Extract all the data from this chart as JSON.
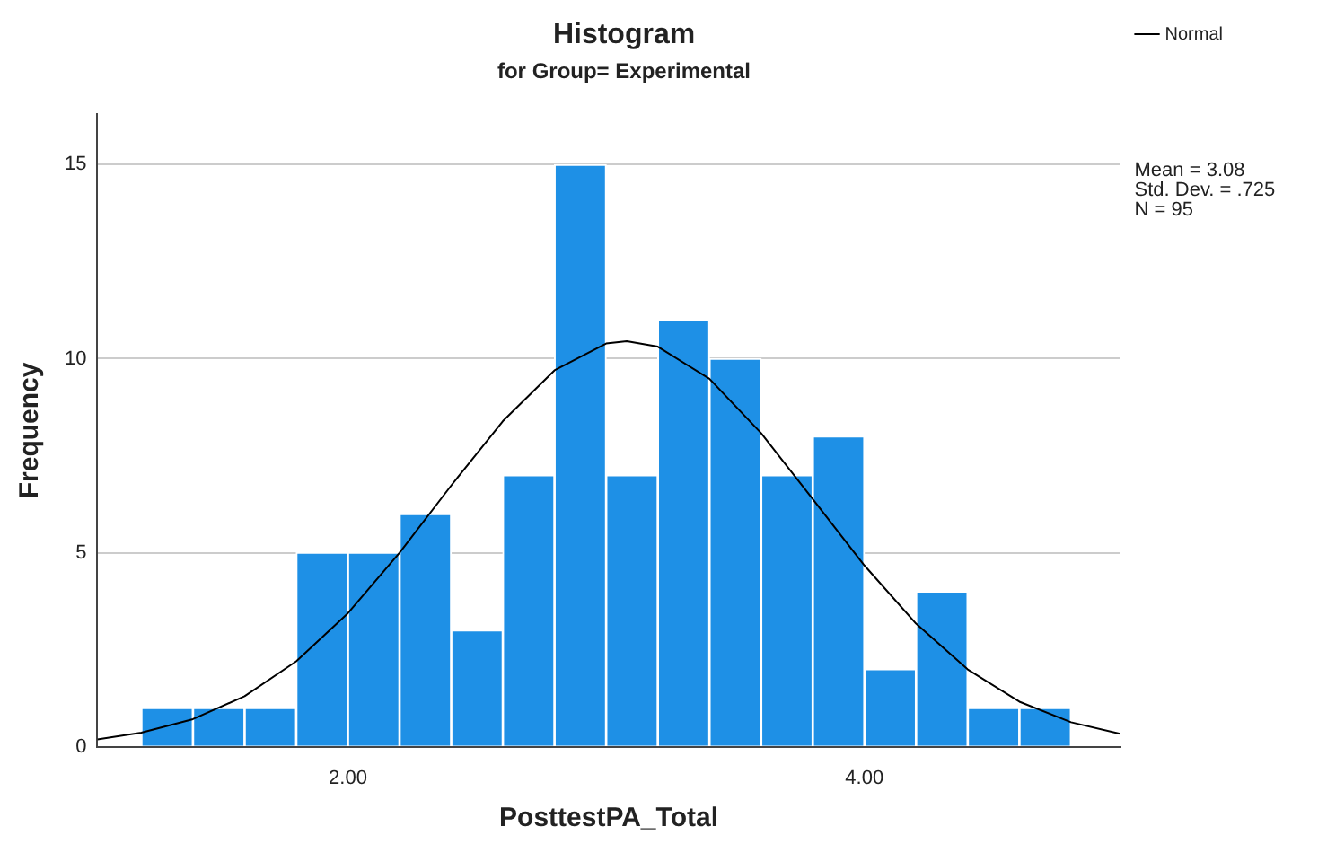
{
  "chart_data": {
    "type": "histogram",
    "title": "Histogram",
    "subtitle": "for Group= Experimental",
    "xlabel": "PosttestPA_Total",
    "ylabel": "Frequency",
    "bins": [
      1.2,
      1.4,
      1.6,
      1.8,
      2.0,
      2.2,
      2.4,
      2.6,
      2.8,
      3.0,
      3.2,
      3.4,
      3.6,
      3.8,
      4.0,
      4.2,
      4.4,
      4.6,
      4.8
    ],
    "values": [
      1,
      1,
      1,
      5,
      5,
      6,
      3,
      7,
      15,
      7,
      11,
      10,
      7,
      8,
      2,
      4,
      1,
      1
    ],
    "color": "#1e90e6",
    "series": [
      {
        "name": "Normal",
        "type": "line",
        "color": "#000000",
        "x": [
          1.03,
          1.2,
          1.4,
          1.6,
          1.8,
          2.0,
          2.2,
          2.4,
          2.6,
          2.8,
          3.0,
          3.08,
          3.2,
          3.4,
          3.6,
          3.8,
          4.0,
          4.2,
          4.4,
          4.6,
          4.8,
          4.99
        ],
        "values": [
          0.19,
          0.36,
          0.71,
          1.3,
          2.2,
          3.44,
          5.0,
          6.73,
          8.39,
          9.7,
          10.39,
          10.45,
          10.31,
          9.48,
          8.08,
          6.38,
          4.67,
          3.17,
          1.99,
          1.16,
          0.63,
          0.33
        ]
      }
    ],
    "xlim": [
      1.03,
      4.99
    ],
    "xticks": [
      {
        "value": 2,
        "label": "2.00"
      },
      {
        "value": 4,
        "label": "4.00"
      }
    ],
    "ylim": [
      0,
      16.3
    ],
    "yticks": [
      0,
      5,
      10,
      15
    ],
    "grid": "y",
    "legend": "top right",
    "marker": "none",
    "annotations": [
      "Mean = 3.08",
      "Std. Dev. = .725",
      "N = 95"
    ]
  }
}
